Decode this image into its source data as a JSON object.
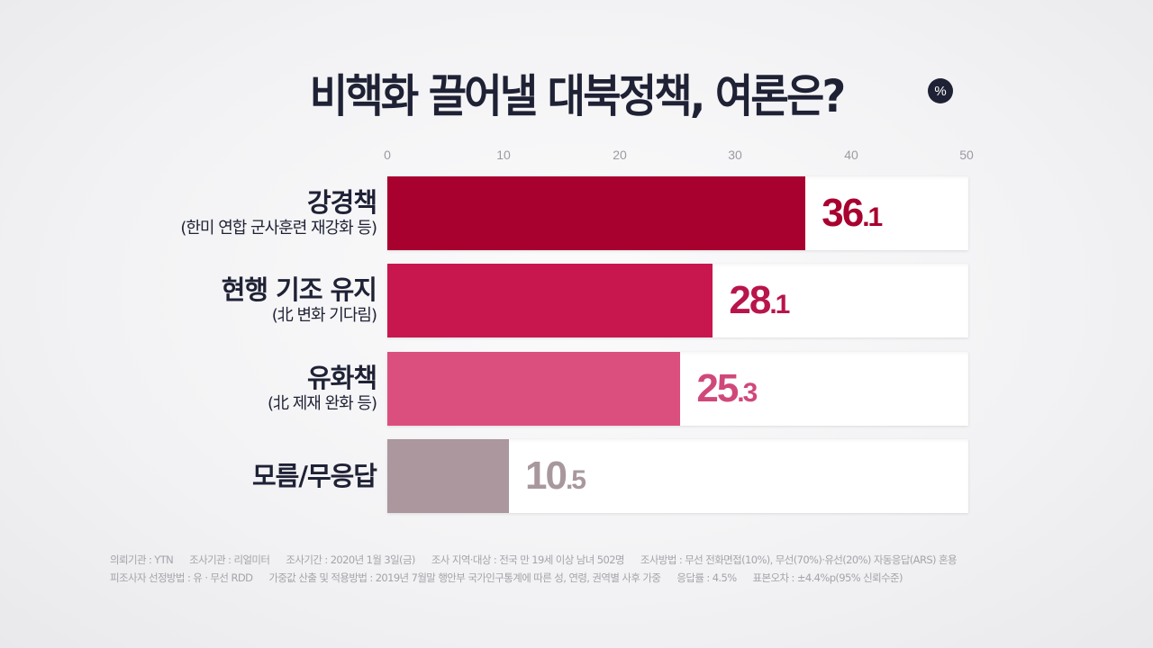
{
  "header": {
    "title": "비핵화 끌어낼 대북정책, 여론은?",
    "unit_badge": "%"
  },
  "axis": {
    "ticks": [
      "0",
      "10",
      "20",
      "30",
      "40",
      "50"
    ]
  },
  "rows": [
    {
      "label": "강경책",
      "sublabel": "(한미 연합 군사훈련 재강화 등)",
      "value_int": "36",
      "value_dec": ".1",
      "color": "#a8002f",
      "text_color": "#a8002f"
    },
    {
      "label": "현행 기조 유지",
      "sublabel": "(北 변화 기다림)",
      "value_int": "28",
      "value_dec": ".1",
      "color": "#c8174f",
      "text_color": "#b8154a"
    },
    {
      "label": "유화책",
      "sublabel": "(北 제재 완화 등)",
      "value_int": "25",
      "value_dec": ".3",
      "color": "#db4f7e",
      "text_color": "#d0487a"
    },
    {
      "label": "모름/무응답",
      "sublabel": "",
      "value_int": "10",
      "value_dec": ".5",
      "color": "#ab979d",
      "text_color": "#a8989d"
    }
  ],
  "footer": {
    "line1": [
      "의뢰기관 : YTN",
      "조사기관 : 리얼미터",
      "조사기간 : 2020년 1월 3일(금)",
      "조사 지역·대상 : 전국 만 19세 이상 남녀 502명",
      "조사방법 : 무선 전화면접(10%), 무선(70%)·유선(20%) 자동응답(ARS) 혼용"
    ],
    "line2": [
      "피조사자 선정방법 : 유 · 무선 RDD",
      "가중값 산출 및 적용방법 : 2019년 7월말 행안부 국가인구통계에 따른 성, 연령, 권역별 사후 가중",
      "응답률 : 4.5%",
      "표본오차 : ±4.4%p(95% 신뢰수준)"
    ]
  },
  "chart_data": {
    "type": "bar",
    "orientation": "horizontal",
    "title": "비핵화 끌어낼 대북정책, 여론은?",
    "unit": "%",
    "categories": [
      "강경책 (한미 연합 군사훈련 재강화 등)",
      "현행 기조 유지 (北 변화 기다림)",
      "유화책 (北 제재 완화 등)",
      "모름/무응답"
    ],
    "values": [
      36.1,
      28.1,
      25.3,
      10.5
    ],
    "colors": [
      "#a8002f",
      "#c8174f",
      "#db4f7e",
      "#ab979d"
    ],
    "xlabel": "",
    "ylabel": "",
    "xlim": [
      0,
      50
    ],
    "xticks": [
      0,
      10,
      20,
      30,
      40,
      50
    ],
    "axis_position": "top",
    "grid": false,
    "legend": "none"
  }
}
